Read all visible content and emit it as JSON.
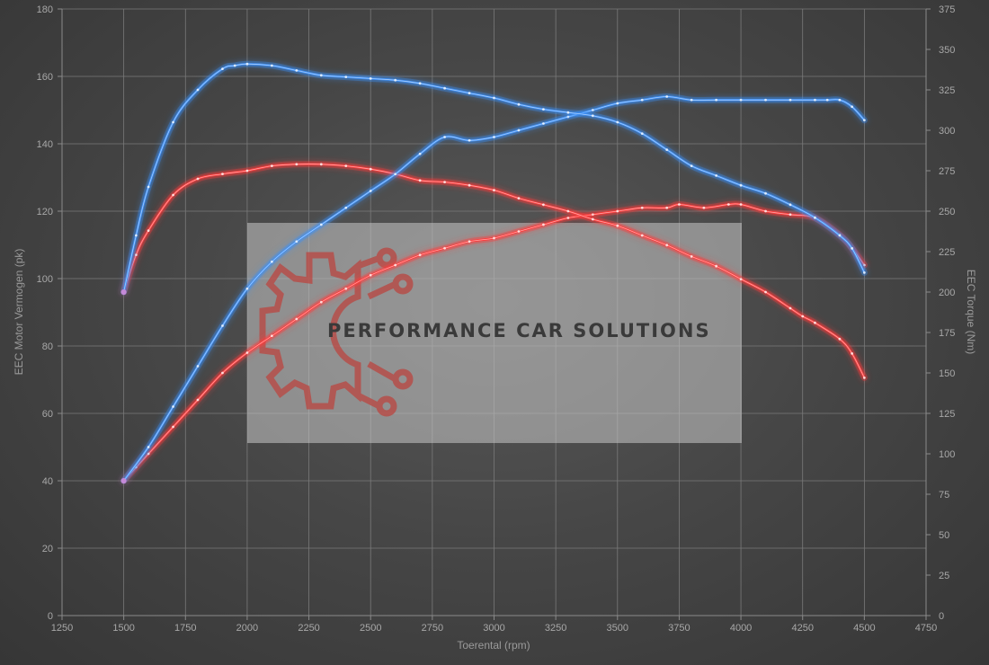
{
  "chart_data": {
    "type": "line",
    "xlabel": "Toerental (rpm)",
    "ylabel_left": "EEC Motor Vermogen (pk)",
    "ylabel_right": "EEC Torque (Nm)",
    "xlim": [
      1250,
      4750
    ],
    "ylim_left": [
      0,
      180
    ],
    "ylim_right": [
      0,
      375
    ],
    "x_ticks": [
      1250,
      1500,
      1750,
      2000,
      2250,
      2500,
      2750,
      3000,
      3250,
      3500,
      3750,
      4000,
      4250,
      4500,
      4750
    ],
    "y_ticks_left": [
      0,
      20,
      40,
      60,
      80,
      100,
      120,
      140,
      160,
      180
    ],
    "y_ticks_right": [
      0,
      25,
      50,
      75,
      100,
      125,
      150,
      175,
      200,
      225,
      250,
      275,
      300,
      325,
      350,
      375
    ],
    "grid": true,
    "series": [
      {
        "axis": "left",
        "color": "#ff3c3c",
        "x": [
          1500,
          1550,
          1600,
          1700,
          1800,
          1900,
          2000,
          2100,
          2200,
          2300,
          2400,
          2500,
          2600,
          2700,
          2800,
          2900,
          3000,
          3100,
          3200,
          3300,
          3400,
          3500,
          3600,
          3700,
          3750,
          3850,
          3950,
          4000,
          4100,
          4200,
          4300,
          4400,
          4450,
          4500
        ],
        "y": [
          40,
          44,
          48,
          56,
          64,
          72,
          78,
          83,
          88,
          93,
          97,
          101,
          104,
          107,
          109,
          111,
          112,
          114,
          116,
          118,
          119,
          120,
          121,
          121,
          122,
          121,
          122,
          122,
          120,
          119,
          118,
          113,
          109,
          104
        ]
      },
      {
        "axis": "right",
        "color": "#ff3c3c",
        "x": [
          1500,
          1550,
          1600,
          1700,
          1800,
          1900,
          2000,
          2100,
          2200,
          2300,
          2400,
          2500,
          2600,
          2700,
          2800,
          2900,
          3000,
          3100,
          3200,
          3300,
          3400,
          3500,
          3600,
          3700,
          3800,
          3900,
          4000,
          4100,
          4200,
          4250,
          4300,
          4400,
          4450,
          4500
        ],
        "y": [
          200,
          223,
          238,
          260,
          270,
          273,
          275,
          278,
          279,
          279,
          278,
          276,
          273,
          269,
          268,
          266,
          263,
          258,
          254,
          250,
          245,
          241,
          235,
          229,
          222,
          216,
          208,
          200,
          190,
          185,
          181,
          171,
          162,
          147
        ]
      },
      {
        "axis": "left",
        "color": "#3d8ff5",
        "x": [
          1500,
          1600,
          1700,
          1800,
          1900,
          2000,
          2100,
          2200,
          2300,
          2400,
          2500,
          2600,
          2700,
          2800,
          2900,
          3000,
          3100,
          3200,
          3300,
          3400,
          3500,
          3600,
          3700,
          3800,
          3900,
          4000,
          4100,
          4200,
          4300,
          4350,
          4400,
          4450,
          4500
        ],
        "y": [
          40,
          50,
          62,
          74,
          86,
          97,
          105,
          111,
          116,
          121,
          126,
          131,
          137,
          142,
          141,
          142,
          144,
          146,
          148,
          150,
          152,
          153,
          154,
          153,
          153,
          153,
          153,
          153,
          153,
          153,
          153,
          151,
          147
        ]
      },
      {
        "axis": "right",
        "color": "#3d8ff5",
        "x": [
          1500,
          1550,
          1600,
          1700,
          1800,
          1900,
          1950,
          2000,
          2100,
          2200,
          2300,
          2400,
          2500,
          2600,
          2700,
          2800,
          2900,
          3000,
          3100,
          3200,
          3300,
          3400,
          3500,
          3600,
          3700,
          3800,
          3900,
          4000,
          4100,
          4200,
          4300,
          4400,
          4450,
          4500
        ],
        "y": [
          200,
          235,
          265,
          305,
          325,
          338,
          340,
          341,
          340,
          337,
          334,
          333,
          332,
          331,
          329,
          326,
          323,
          320,
          316,
          313,
          311,
          309,
          305,
          298,
          288,
          278,
          272,
          266,
          261,
          254,
          246,
          235,
          227,
          212
        ]
      }
    ]
  },
  "watermark": {
    "text": "PERFORMANCE CAR SOLUTIONS"
  }
}
